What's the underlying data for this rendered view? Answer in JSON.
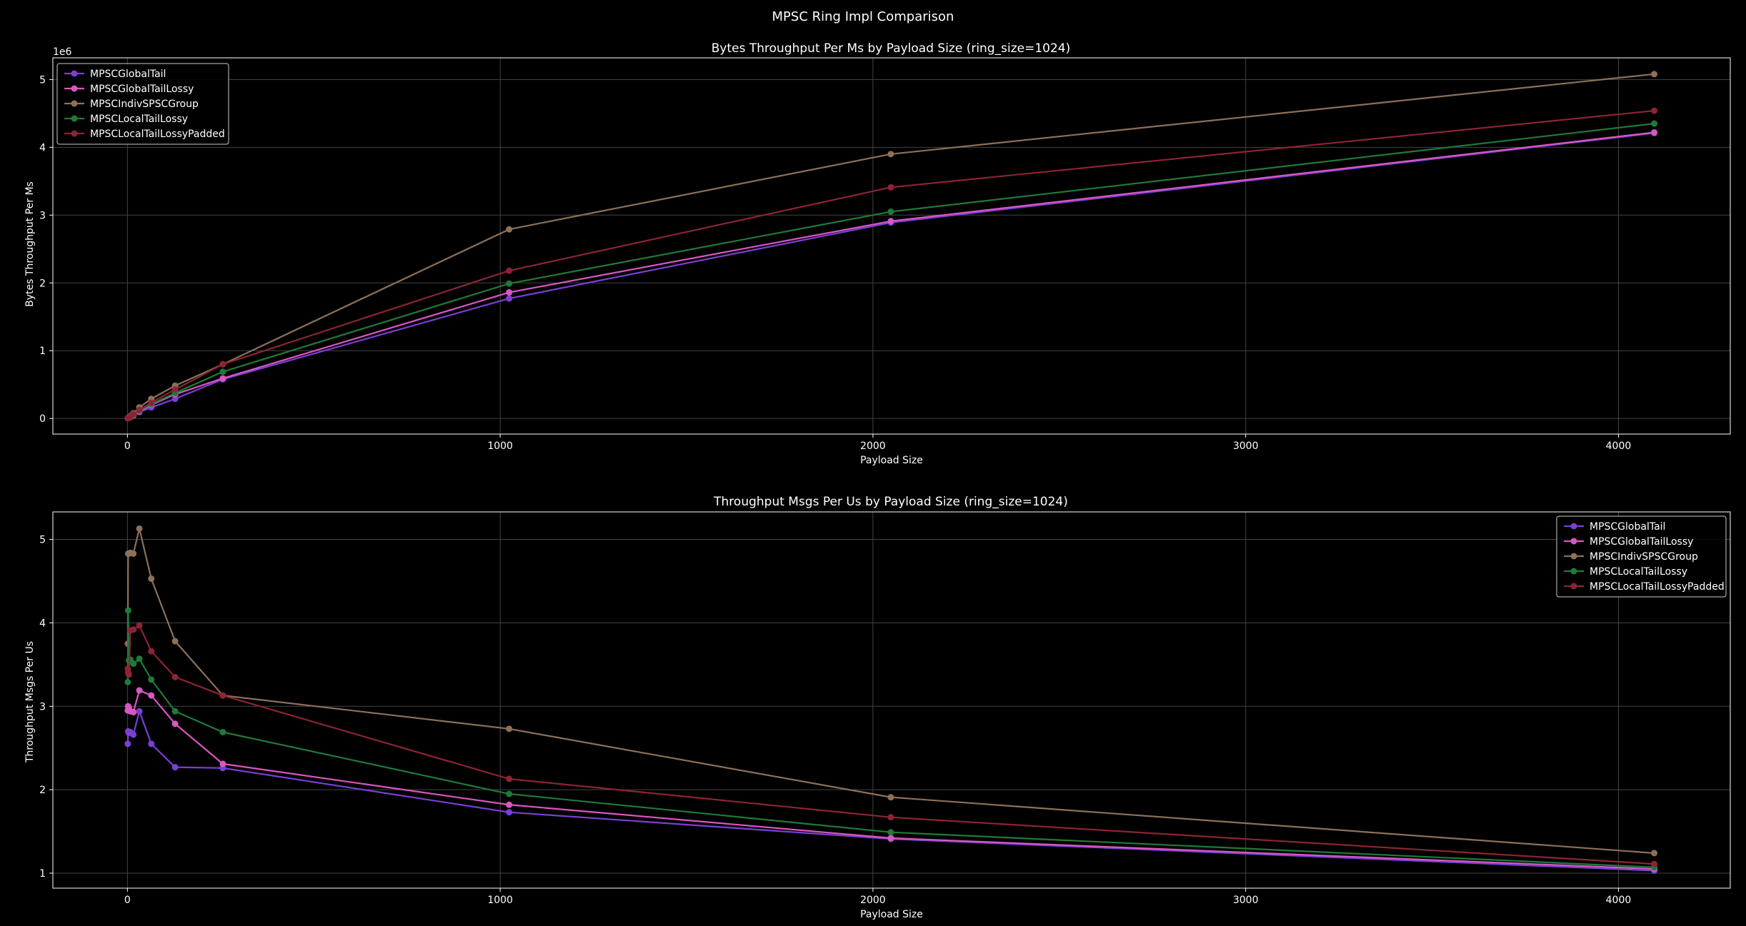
{
  "figure": {
    "suptitle": "MPSC Ring Impl Comparison",
    "background": "#000000",
    "grid_color": "#444444",
    "spine_color": "#ffffff"
  },
  "series_colors": {
    "MPSCGlobalTail": "#7a3fd6",
    "MPSCGlobalTailLossy": "#d957c1",
    "MPSCIndivSPSCGroup": "#8c7158",
    "MPSCLocalTailLossy": "#1f7a3a",
    "MPSCLocalTailLossyPadded": "#8c2436"
  },
  "chart_data": [
    {
      "type": "line",
      "title": "Bytes Throughput Per Ms by Payload Size (ring_size=1024)",
      "xlabel": "Payload Size",
      "ylabel": "Bytes Throughput Per Ms",
      "offset_text": "1e6",
      "xlim": [
        -200,
        4300
      ],
      "ylim": [
        -230000,
        5320000
      ],
      "xticks": [
        0,
        1000,
        2000,
        3000,
        4000
      ],
      "xtick_labels": [
        "0",
        "1000",
        "2000",
        "3000",
        "4000"
      ],
      "yticks": [
        0,
        1000000,
        2000000,
        3000000,
        4000000,
        5000000
      ],
      "ytick_labels": [
        "0",
        "1",
        "2",
        "3",
        "4",
        "5"
      ],
      "grid": true,
      "legend_position": "upper-left",
      "x": [
        1,
        2,
        4,
        8,
        16,
        32,
        64,
        128,
        256,
        1024,
        2048,
        4096
      ],
      "series": [
        {
          "name": "MPSCGlobalTail",
          "values": [
            2550,
            5400,
            10700,
            21500,
            42500,
            94000,
            163000,
            290000,
            578000,
            1770000,
            2890000,
            4210000
          ]
        },
        {
          "name": "MPSCGlobalTailLossy",
          "values": [
            2950,
            6000,
            11900,
            23500,
            47000,
            102000,
            200000,
            357000,
            592000,
            1860000,
            2910000,
            4220000
          ]
        },
        {
          "name": "MPSCIndivSPSCGroup",
          "values": [
            3750,
            9700,
            19300,
            38700,
            77000,
            164000,
            290000,
            484000,
            800000,
            2790000,
            3900000,
            5080000
          ]
        },
        {
          "name": "MPSCLocalTailLossy",
          "values": [
            3300,
            8300,
            14200,
            28500,
            56000,
            114000,
            212000,
            376000,
            690000,
            1990000,
            3050000,
            4350000
          ]
        },
        {
          "name": "MPSCLocalTailLossyPadded",
          "values": [
            3450,
            6800,
            13500,
            31200,
            62500,
            127000,
            234000,
            428000,
            800000,
            2180000,
            3410000,
            4540000
          ]
        }
      ]
    },
    {
      "type": "line",
      "title": "Throughput Msgs Per Us by Payload Size (ring_size=1024)",
      "xlabel": "Payload Size",
      "ylabel": "Throughput Msgs Per Us",
      "xlim": [
        -200,
        4300
      ],
      "ylim": [
        0.82,
        5.33
      ],
      "xticks": [
        0,
        1000,
        2000,
        3000,
        4000
      ],
      "xtick_labels": [
        "0",
        "1000",
        "2000",
        "3000",
        "4000"
      ],
      "yticks": [
        1,
        2,
        3,
        4,
        5
      ],
      "ytick_labels": [
        "1",
        "2",
        "3",
        "4",
        "5"
      ],
      "grid": true,
      "legend_position": "upper-right",
      "x": [
        1,
        2,
        4,
        8,
        16,
        32,
        64,
        128,
        256,
        1024,
        2048,
        4096
      ],
      "series": [
        {
          "name": "MPSCGlobalTail",
          "values": [
            2.55,
            2.7,
            2.68,
            2.69,
            2.66,
            2.94,
            2.55,
            2.27,
            2.26,
            1.73,
            1.41,
            1.03
          ]
        },
        {
          "name": "MPSCGlobalTailLossy",
          "values": [
            2.95,
            3.0,
            2.98,
            2.94,
            2.93,
            3.19,
            3.13,
            2.79,
            2.31,
            1.82,
            1.42,
            1.05
          ]
        },
        {
          "name": "MPSCIndivSPSCGroup",
          "values": [
            3.75,
            4.83,
            4.83,
            4.84,
            4.83,
            5.13,
            4.53,
            3.78,
            3.13,
            2.73,
            1.91,
            1.24
          ]
        },
        {
          "name": "MPSCLocalTailLossy",
          "values": [
            3.29,
            4.15,
            3.55,
            3.56,
            3.51,
            3.57,
            3.32,
            2.94,
            2.69,
            1.95,
            1.49,
            1.07
          ]
        },
        {
          "name": "MPSCLocalTailLossyPadded",
          "values": [
            3.45,
            3.4,
            3.38,
            3.91,
            3.92,
            3.97,
            3.66,
            3.35,
            3.13,
            2.13,
            1.67,
            1.11
          ]
        }
      ]
    }
  ]
}
